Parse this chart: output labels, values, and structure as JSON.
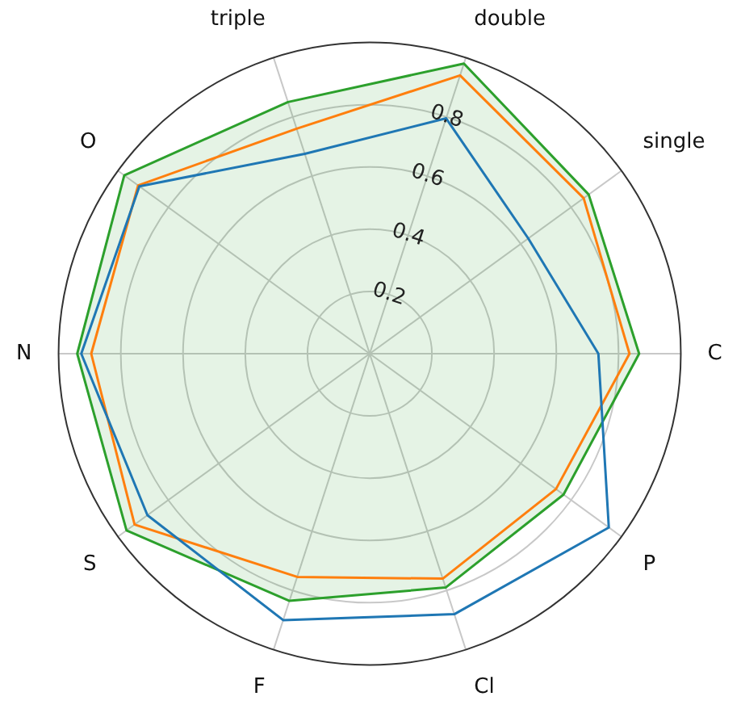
{
  "chart_data": {
    "type": "radar",
    "categories": [
      "double",
      "single",
      "C",
      "P",
      "Cl",
      "F",
      "S",
      "N",
      "O",
      "triple"
    ],
    "series": [
      {
        "color": "#1f77b4",
        "values": [
          0.795,
          0.63,
          0.735,
          0.95,
          0.88,
          0.9,
          0.883,
          0.927,
          0.915,
          0.675
        ]
      },
      {
        "color": "#ff7f0e",
        "values": [
          0.94,
          0.85,
          0.835,
          0.74,
          0.76,
          0.754,
          0.934,
          0.895,
          0.92,
          0.76
        ]
      },
      {
        "color": "#2ca02c",
        "values": [
          0.98,
          0.87,
          0.866,
          0.77,
          0.79,
          0.835,
          0.966,
          0.94,
          0.975,
          0.85
        ]
      }
    ],
    "ylim": [
      0,
      1
    ],
    "yticks": [
      0.2,
      0.4,
      0.6,
      0.8
    ],
    "grid": true,
    "legend": false
  }
}
